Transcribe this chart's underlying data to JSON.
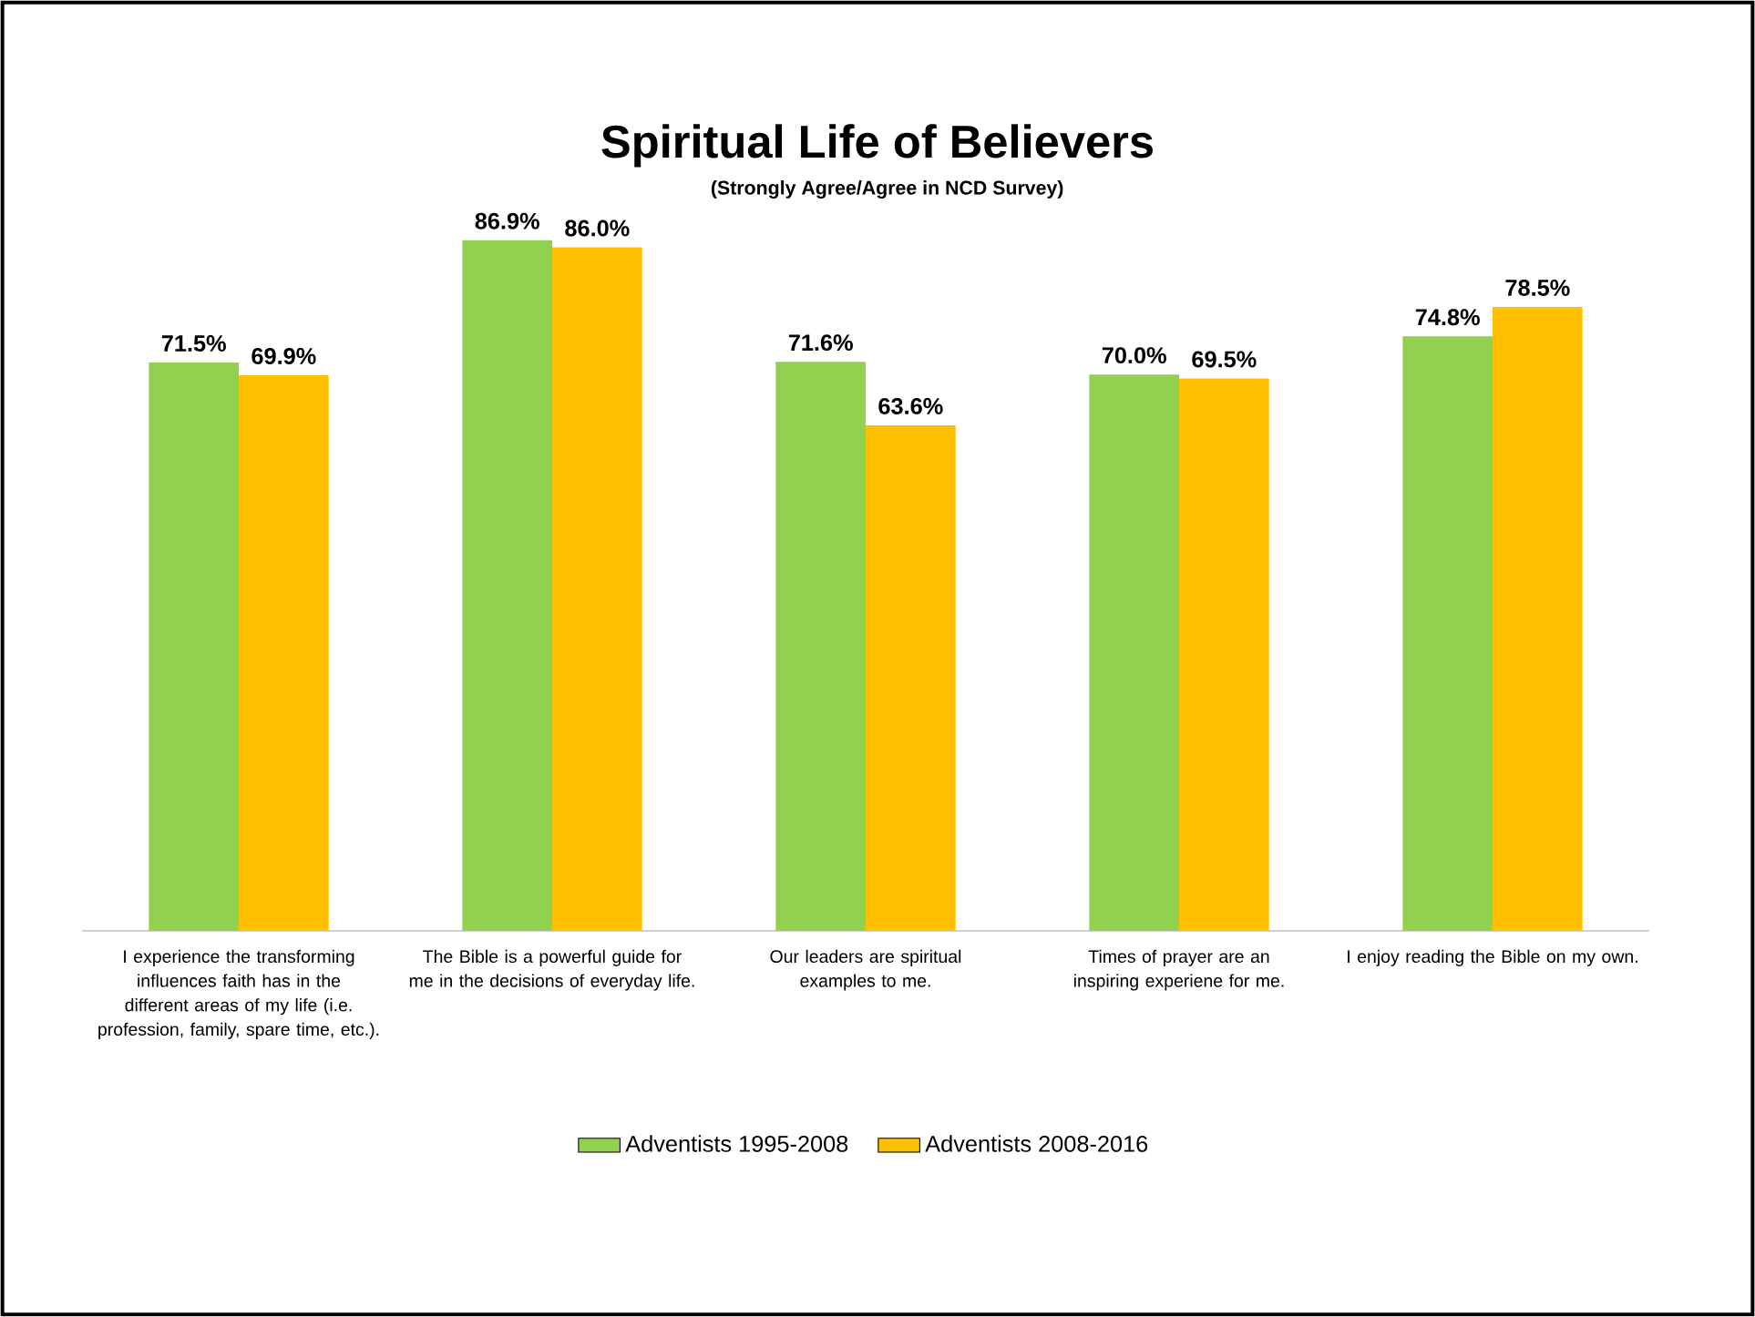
{
  "chart_data": {
    "type": "bar",
    "title": "Spiritual Life of Believers",
    "subtitle": "(Strongly Agree/Agree in NCD Survey)",
    "categories": [
      "I experience the transforming influences faith has in the different areas of my life (i.e. profession, family, spare time, etc.).",
      "The Bible is a powerful guide for me in the decisions of everyday life.",
      "Our leaders are spiritual examples to me.",
      "Times of prayer are an inspiring experiene for me.",
      "I enjoy reading the Bible on my own."
    ],
    "series": [
      {
        "name": "Adventists 1995-2008",
        "color": "#92d050",
        "values": [
          71.5,
          86.9,
          71.6,
          70.0,
          74.8
        ],
        "value_labels": [
          "71.5%",
          "86.9%",
          "71.6%",
          "70.0%",
          "74.8%"
        ]
      },
      {
        "name": "Adventists 2008-2016",
        "color": "#ffc000",
        "values": [
          69.9,
          86.0,
          63.6,
          69.5,
          78.5
        ],
        "value_labels": [
          "69.9%",
          "86.0%",
          "63.6%",
          "69.5%",
          "78.5%"
        ]
      }
    ],
    "legend": "bottom"
  }
}
